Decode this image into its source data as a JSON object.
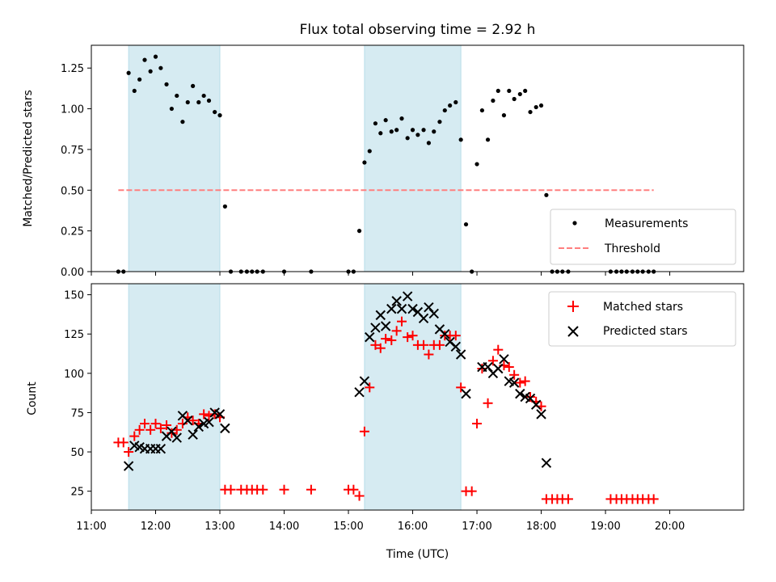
{
  "chart_data": [
    {
      "type": "scatter",
      "title": "Flux total observing time = 2.92 h",
      "xlabel": "",
      "ylabel": "Matched/Predicted stars",
      "xlim": [
        11.0,
        21.15
      ],
      "ylim": [
        0.0,
        1.39
      ],
      "yticks": [
        0.0,
        0.25,
        0.5,
        0.75,
        1.0,
        1.25
      ],
      "ytick_labels": [
        "0.00",
        "0.25",
        "0.50",
        "0.75",
        "1.00",
        "1.25"
      ],
      "shaded_intervals": [
        [
          11.58,
          13.0
        ],
        [
          15.25,
          16.75
        ]
      ],
      "legend_position": "lower right",
      "series": [
        {
          "name": "Measurements",
          "color": "#000000",
          "marker": "dot",
          "x": [
            11.42,
            11.5,
            11.58,
            11.67,
            11.75,
            11.83,
            11.92,
            12.0,
            12.08,
            12.17,
            12.25,
            12.33,
            12.42,
            12.5,
            12.58,
            12.67,
            12.75,
            12.83,
            12.92,
            13.0,
            13.08,
            13.17,
            13.33,
            13.42,
            13.5,
            13.58,
            13.67,
            14.0,
            14.42,
            15.0,
            15.08,
            15.17,
            15.25,
            15.33,
            15.42,
            15.5,
            15.58,
            15.67,
            15.75,
            15.83,
            15.92,
            16.0,
            16.08,
            16.17,
            16.25,
            16.33,
            16.42,
            16.5,
            16.58,
            16.67,
            16.75,
            16.83,
            16.92,
            17.0,
            17.08,
            17.17,
            17.25,
            17.33,
            17.42,
            17.5,
            17.58,
            17.67,
            17.75,
            17.83,
            17.92,
            18.0,
            18.08,
            18.17,
            18.25,
            18.33,
            18.42,
            19.08,
            19.17,
            19.25,
            19.33,
            19.42,
            19.5,
            19.58,
            19.67,
            19.75
          ],
          "y": [
            0.0,
            0.0,
            1.22,
            1.11,
            1.18,
            1.3,
            1.23,
            1.32,
            1.25,
            1.15,
            1.0,
            1.08,
            0.92,
            1.04,
            1.14,
            1.04,
            1.08,
            1.05,
            0.98,
            0.96,
            0.4,
            0.0,
            0.0,
            0.0,
            0.0,
            0.0,
            0.0,
            0.0,
            0.0,
            0.0,
            0.0,
            0.25,
            0.67,
            0.74,
            0.91,
            0.85,
            0.93,
            0.86,
            0.87,
            0.94,
            0.82,
            0.87,
            0.84,
            0.87,
            0.79,
            0.86,
            0.92,
            0.99,
            1.02,
            1.04,
            0.81,
            0.29,
            0.0,
            0.66,
            0.99,
            0.81,
            1.05,
            1.11,
            0.96,
            1.11,
            1.06,
            1.09,
            1.11,
            0.98,
            1.01,
            1.02,
            0.47,
            0.0,
            0.0,
            0.0,
            0.0,
            0.0,
            0.0,
            0.0,
            0.0,
            0.0,
            0.0,
            0.0,
            0.0,
            0.0
          ]
        },
        {
          "name": "Threshold",
          "color": "#ff7f7f",
          "marker": "dashed-line",
          "x": [
            11.42,
            19.75
          ],
          "y": [
            0.5,
            0.5
          ]
        }
      ]
    },
    {
      "type": "scatter",
      "title": "",
      "xlabel": "Time (UTC)",
      "ylabel": "Count",
      "xlim": [
        11.0,
        21.15
      ],
      "ylim": [
        13,
        157
      ],
      "xticks": [
        11,
        12,
        13,
        14,
        15,
        16,
        17,
        18,
        19,
        20
      ],
      "xtick_labels": [
        "11:00",
        "12:00",
        "13:00",
        "14:00",
        "15:00",
        "16:00",
        "17:00",
        "18:00",
        "19:00",
        "20:00"
      ],
      "yticks": [
        25,
        50,
        75,
        100,
        125,
        150
      ],
      "ytick_labels": [
        "25",
        "50",
        "75",
        "100",
        "125",
        "150"
      ],
      "shaded_intervals": [
        [
          11.58,
          13.0
        ],
        [
          15.25,
          16.75
        ]
      ],
      "legend_position": "upper right",
      "series": [
        {
          "name": "Matched stars",
          "color": "#ff0000",
          "marker": "plus",
          "x": [
            11.42,
            11.5,
            11.58,
            11.67,
            11.75,
            11.83,
            11.92,
            12.0,
            12.08,
            12.17,
            12.25,
            12.33,
            12.42,
            12.5,
            12.58,
            12.67,
            12.75,
            12.83,
            12.92,
            13.0,
            13.08,
            13.17,
            13.33,
            13.42,
            13.5,
            13.58,
            13.67,
            14.0,
            14.42,
            15.0,
            15.08,
            15.17,
            15.25,
            15.33,
            15.42,
            15.5,
            15.58,
            15.67,
            15.75,
            15.83,
            15.92,
            16.0,
            16.08,
            16.17,
            16.25,
            16.33,
            16.42,
            16.5,
            16.58,
            16.67,
            16.75,
            16.83,
            16.92,
            17.0,
            17.08,
            17.17,
            17.25,
            17.33,
            17.42,
            17.5,
            17.58,
            17.67,
            17.75,
            17.83,
            17.92,
            18.0,
            18.08,
            18.17,
            18.25,
            18.33,
            18.42,
            19.08,
            19.17,
            19.25,
            19.33,
            19.42,
            19.5,
            19.58,
            19.67,
            19.75
          ],
          "y": [
            56,
            56,
            50,
            60,
            64,
            68,
            64,
            68,
            65,
            67,
            62,
            64,
            68,
            72,
            70,
            68,
            74,
            73,
            74,
            72,
            26,
            26,
            26,
            26,
            26,
            26,
            26,
            26,
            26,
            26,
            26,
            22,
            63,
            91,
            118,
            116,
            122,
            121,
            127,
            133,
            123,
            124,
            118,
            118,
            112,
            118,
            118,
            124,
            124,
            124,
            91,
            25,
            25,
            68,
            103,
            81,
            108,
            115,
            105,
            104,
            99,
            94,
            95,
            85,
            82,
            79,
            20,
            20,
            20,
            20,
            20,
            20,
            20,
            20,
            20,
            20,
            20,
            20,
            20,
            20
          ]
        },
        {
          "name": "Predicted stars",
          "color": "#000000",
          "marker": "x",
          "x": [
            11.58,
            11.67,
            11.75,
            11.83,
            11.92,
            12.0,
            12.08,
            12.17,
            12.25,
            12.33,
            12.42,
            12.5,
            12.58,
            12.67,
            12.75,
            12.83,
            12.92,
            13.0,
            13.08,
            15.17,
            15.25,
            15.33,
            15.42,
            15.5,
            15.58,
            15.67,
            15.75,
            15.83,
            15.92,
            16.0,
            16.08,
            16.17,
            16.25,
            16.33,
            16.42,
            16.5,
            16.58,
            16.67,
            16.75,
            16.83,
            17.08,
            17.17,
            17.25,
            17.33,
            17.42,
            17.5,
            17.58,
            17.67,
            17.75,
            17.83,
            17.92,
            18.0,
            18.08
          ],
          "y": [
            41,
            54,
            53,
            52,
            52,
            52,
            52,
            60,
            63,
            59,
            73,
            70,
            61,
            66,
            68,
            69,
            75,
            74,
            65,
            88,
            95,
            123,
            129,
            137,
            130,
            141,
            146,
            141,
            149,
            141,
            139,
            135,
            142,
            138,
            128,
            125,
            120,
            117,
            112,
            87,
            104,
            104,
            100,
            103,
            109,
            95,
            94,
            87,
            85,
            84,
            80,
            74,
            43
          ]
        }
      ]
    }
  ]
}
